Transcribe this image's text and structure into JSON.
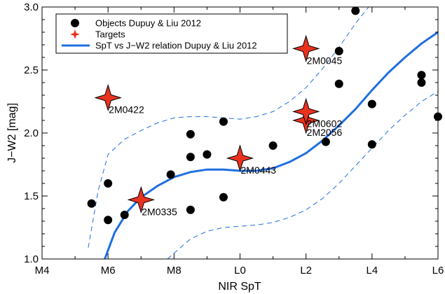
{
  "chart_data": {
    "type": "scatter",
    "xlabel": "NIR SpT",
    "ylabel": "J−W2 [mag]",
    "xlim": [
      4,
      16
    ],
    "ylim": [
      1.0,
      3.0
    ],
    "x_ticks": [
      {
        "value": 4,
        "label": "M4"
      },
      {
        "value": 6,
        "label": "M6"
      },
      {
        "value": 8,
        "label": "M8"
      },
      {
        "value": 10,
        "label": "L0"
      },
      {
        "value": 12,
        "label": "L2"
      },
      {
        "value": 14,
        "label": "L4"
      },
      {
        "value": 16,
        "label": "L6"
      }
    ],
    "y_ticks": [
      {
        "value": 1.0,
        "label": "1.0"
      },
      {
        "value": 1.5,
        "label": "1.5"
      },
      {
        "value": 2.0,
        "label": "2.0"
      },
      {
        "value": 2.5,
        "label": "2.5"
      },
      {
        "value": 3.0,
        "label": "3.0"
      }
    ],
    "grid": false,
    "legend_position": "top-left",
    "legend": [
      {
        "label": "Objects Dupuy & Liu 2012",
        "marker": "circle",
        "color": "#000000"
      },
      {
        "label": "Targets",
        "marker": "star",
        "color": "#e8321e"
      },
      {
        "label": "SpT vs J−W2 relation Dupuy & Liu 2012",
        "marker": "line",
        "color": "#1f6fe0"
      }
    ],
    "series": [
      {
        "name": "Objects Dupuy & Liu 2012",
        "marker": "circle",
        "color": "#000000",
        "points": [
          [
            5.5,
            1.44
          ],
          [
            6.0,
            1.31
          ],
          [
            6.0,
            1.6
          ],
          [
            6.5,
            1.35
          ],
          [
            7.9,
            1.67
          ],
          [
            8.5,
            1.39
          ],
          [
            8.5,
            1.81
          ],
          [
            8.5,
            1.99
          ],
          [
            9.0,
            1.83
          ],
          [
            9.5,
            1.49
          ],
          [
            9.5,
            2.09
          ],
          [
            11.0,
            1.9
          ],
          [
            12.6,
            1.93
          ],
          [
            13.0,
            2.39
          ],
          [
            13.0,
            2.65
          ],
          [
            13.5,
            2.97
          ],
          [
            14.0,
            1.91
          ],
          [
            14.0,
            2.23
          ],
          [
            15.5,
            2.4
          ],
          [
            15.5,
            2.46
          ],
          [
            16.0,
            2.13
          ]
        ]
      },
      {
        "name": "Targets",
        "marker": "star",
        "color": "#e8321e",
        "points": [
          {
            "x": 7.0,
            "y": 1.47,
            "label": "2M0335"
          },
          {
            "x": 10.0,
            "y": 1.8,
            "label": "2M0443"
          },
          {
            "x": 12.0,
            "y": 2.1,
            "label": "2M2056"
          },
          {
            "x": 12.0,
            "y": 2.17,
            "label": "2M0602"
          },
          {
            "x": 12.0,
            "y": 2.67,
            "label": "2M0045"
          },
          {
            "x": 6.0,
            "y": 2.28,
            "label": "2M0422"
          }
        ]
      },
      {
        "name": "SpT vs J−W2 relation Dupuy & Liu 2012",
        "type": "line",
        "color": "#1f6fe0",
        "x": [
          5.9,
          6.2,
          6.6,
          7.0,
          7.5,
          8.0,
          8.5,
          9.0,
          9.5,
          10.0,
          10.5,
          11.0,
          11.5,
          12.0,
          12.5,
          13.0,
          13.5,
          14.0,
          14.5,
          15.0,
          15.5,
          16.0
        ],
        "y": [
          1.0,
          1.21,
          1.38,
          1.49,
          1.58,
          1.65,
          1.69,
          1.71,
          1.71,
          1.7,
          1.7,
          1.72,
          1.77,
          1.84,
          1.94,
          2.06,
          2.19,
          2.34,
          2.48,
          2.6,
          2.71,
          2.8
        ]
      },
      {
        "name": "",
        "type": "line",
        "style": "dashed",
        "color": "#1f6fe0",
        "x": [
          5.4,
          5.7,
          6.0,
          6.5,
          7.0,
          7.5,
          8.0,
          8.5,
          9.0,
          9.5,
          10.0,
          10.5,
          11.0,
          11.5,
          12.0,
          12.5,
          13.0,
          13.5,
          13.9
        ],
        "y": [
          1.09,
          1.54,
          1.83,
          1.95,
          2.02,
          2.08,
          2.12,
          2.13,
          2.13,
          2.12,
          2.11,
          2.13,
          2.17,
          2.25,
          2.36,
          2.51,
          2.68,
          2.87,
          3.0
        ]
      },
      {
        "name": "",
        "type": "line",
        "style": "dashed",
        "color": "#1f6fe0",
        "x": [
          7.8,
          8.5,
          9.0,
          9.5,
          10.0,
          10.5,
          11.0,
          11.5,
          12.0,
          12.5,
          13.0,
          13.5,
          14.0,
          14.5,
          15.0,
          15.5,
          16.0
        ],
        "y": [
          1.0,
          1.16,
          1.22,
          1.25,
          1.26,
          1.27,
          1.29,
          1.33,
          1.39,
          1.48,
          1.6,
          1.74,
          1.88,
          2.02,
          2.14,
          2.25,
          2.33
        ]
      }
    ]
  }
}
